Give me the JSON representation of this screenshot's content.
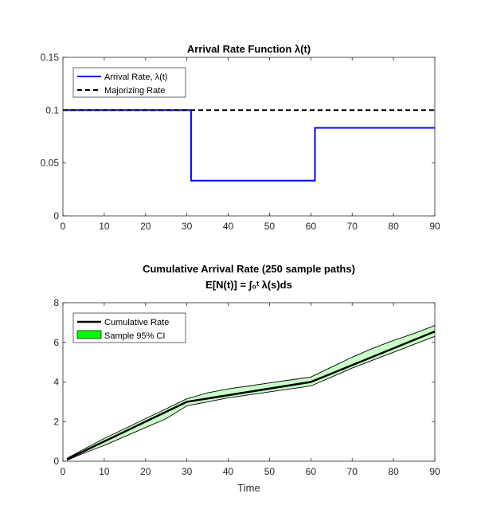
{
  "chart_data": [
    {
      "type": "line",
      "title": "Arrival Rate Function λ(t)",
      "xlabel": "",
      "ylabel": "",
      "xlim": [
        0,
        90
      ],
      "ylim": [
        0,
        0.15
      ],
      "xticks": [
        0,
        10,
        20,
        30,
        40,
        50,
        60,
        70,
        80,
        90
      ],
      "yticks": [
        0,
        0.05,
        0.1,
        0.15
      ],
      "ytick_labels": [
        "0",
        "0.05",
        "0.1",
        "0.15"
      ],
      "grid": false,
      "legend_location": "top-left",
      "series": [
        {
          "name": "Arrival Rate, λ(t)",
          "style": "solid",
          "color": "#0000ff",
          "x": [
            0,
            31,
            31,
            61,
            61,
            90
          ],
          "y": [
            0.1,
            0.1,
            0.0333,
            0.0333,
            0.0833,
            0.0833
          ]
        },
        {
          "name": "Majorizing Rate",
          "style": "dashed",
          "color": "#000000",
          "x": [
            0,
            90
          ],
          "y": [
            0.1,
            0.1
          ]
        }
      ]
    },
    {
      "type": "area",
      "title": "Cumulative Arrival Rate (250 sample paths)",
      "subtitle": "E[N(t)] = ∫₀ᵗ λ(s)ds",
      "xlabel": "Time",
      "ylabel": "",
      "xlim": [
        0,
        90
      ],
      "ylim": [
        0,
        8
      ],
      "xticks": [
        0,
        10,
        20,
        30,
        40,
        50,
        60,
        70,
        80,
        90
      ],
      "yticks": [
        0,
        2,
        4,
        6,
        8
      ],
      "grid": false,
      "legend_location": "top-left",
      "series": [
        {
          "name": "Cumulative Rate",
          "style": "solid",
          "color": "#000000",
          "x": [
            1,
            30,
            60,
            90
          ],
          "y": [
            0.1,
            3.0,
            4.0,
            6.55
          ]
        }
      ],
      "confidence_band": {
        "name": "Sample 95% CI",
        "color": "#00ff00",
        "x": [
          1,
          5,
          10,
          15,
          20,
          25,
          30,
          35,
          40,
          45,
          50,
          55,
          60,
          65,
          70,
          75,
          80,
          85,
          90
        ],
        "lower": [
          0.05,
          0.4,
          0.8,
          1.25,
          1.7,
          2.15,
          2.8,
          3.0,
          3.2,
          3.35,
          3.5,
          3.65,
          3.8,
          4.25,
          4.7,
          5.1,
          5.5,
          5.9,
          6.3
        ],
        "upper": [
          0.15,
          0.6,
          1.15,
          1.65,
          2.15,
          2.65,
          3.15,
          3.45,
          3.65,
          3.8,
          3.95,
          4.1,
          4.25,
          4.75,
          5.25,
          5.7,
          6.1,
          6.45,
          6.85
        ]
      }
    }
  ]
}
